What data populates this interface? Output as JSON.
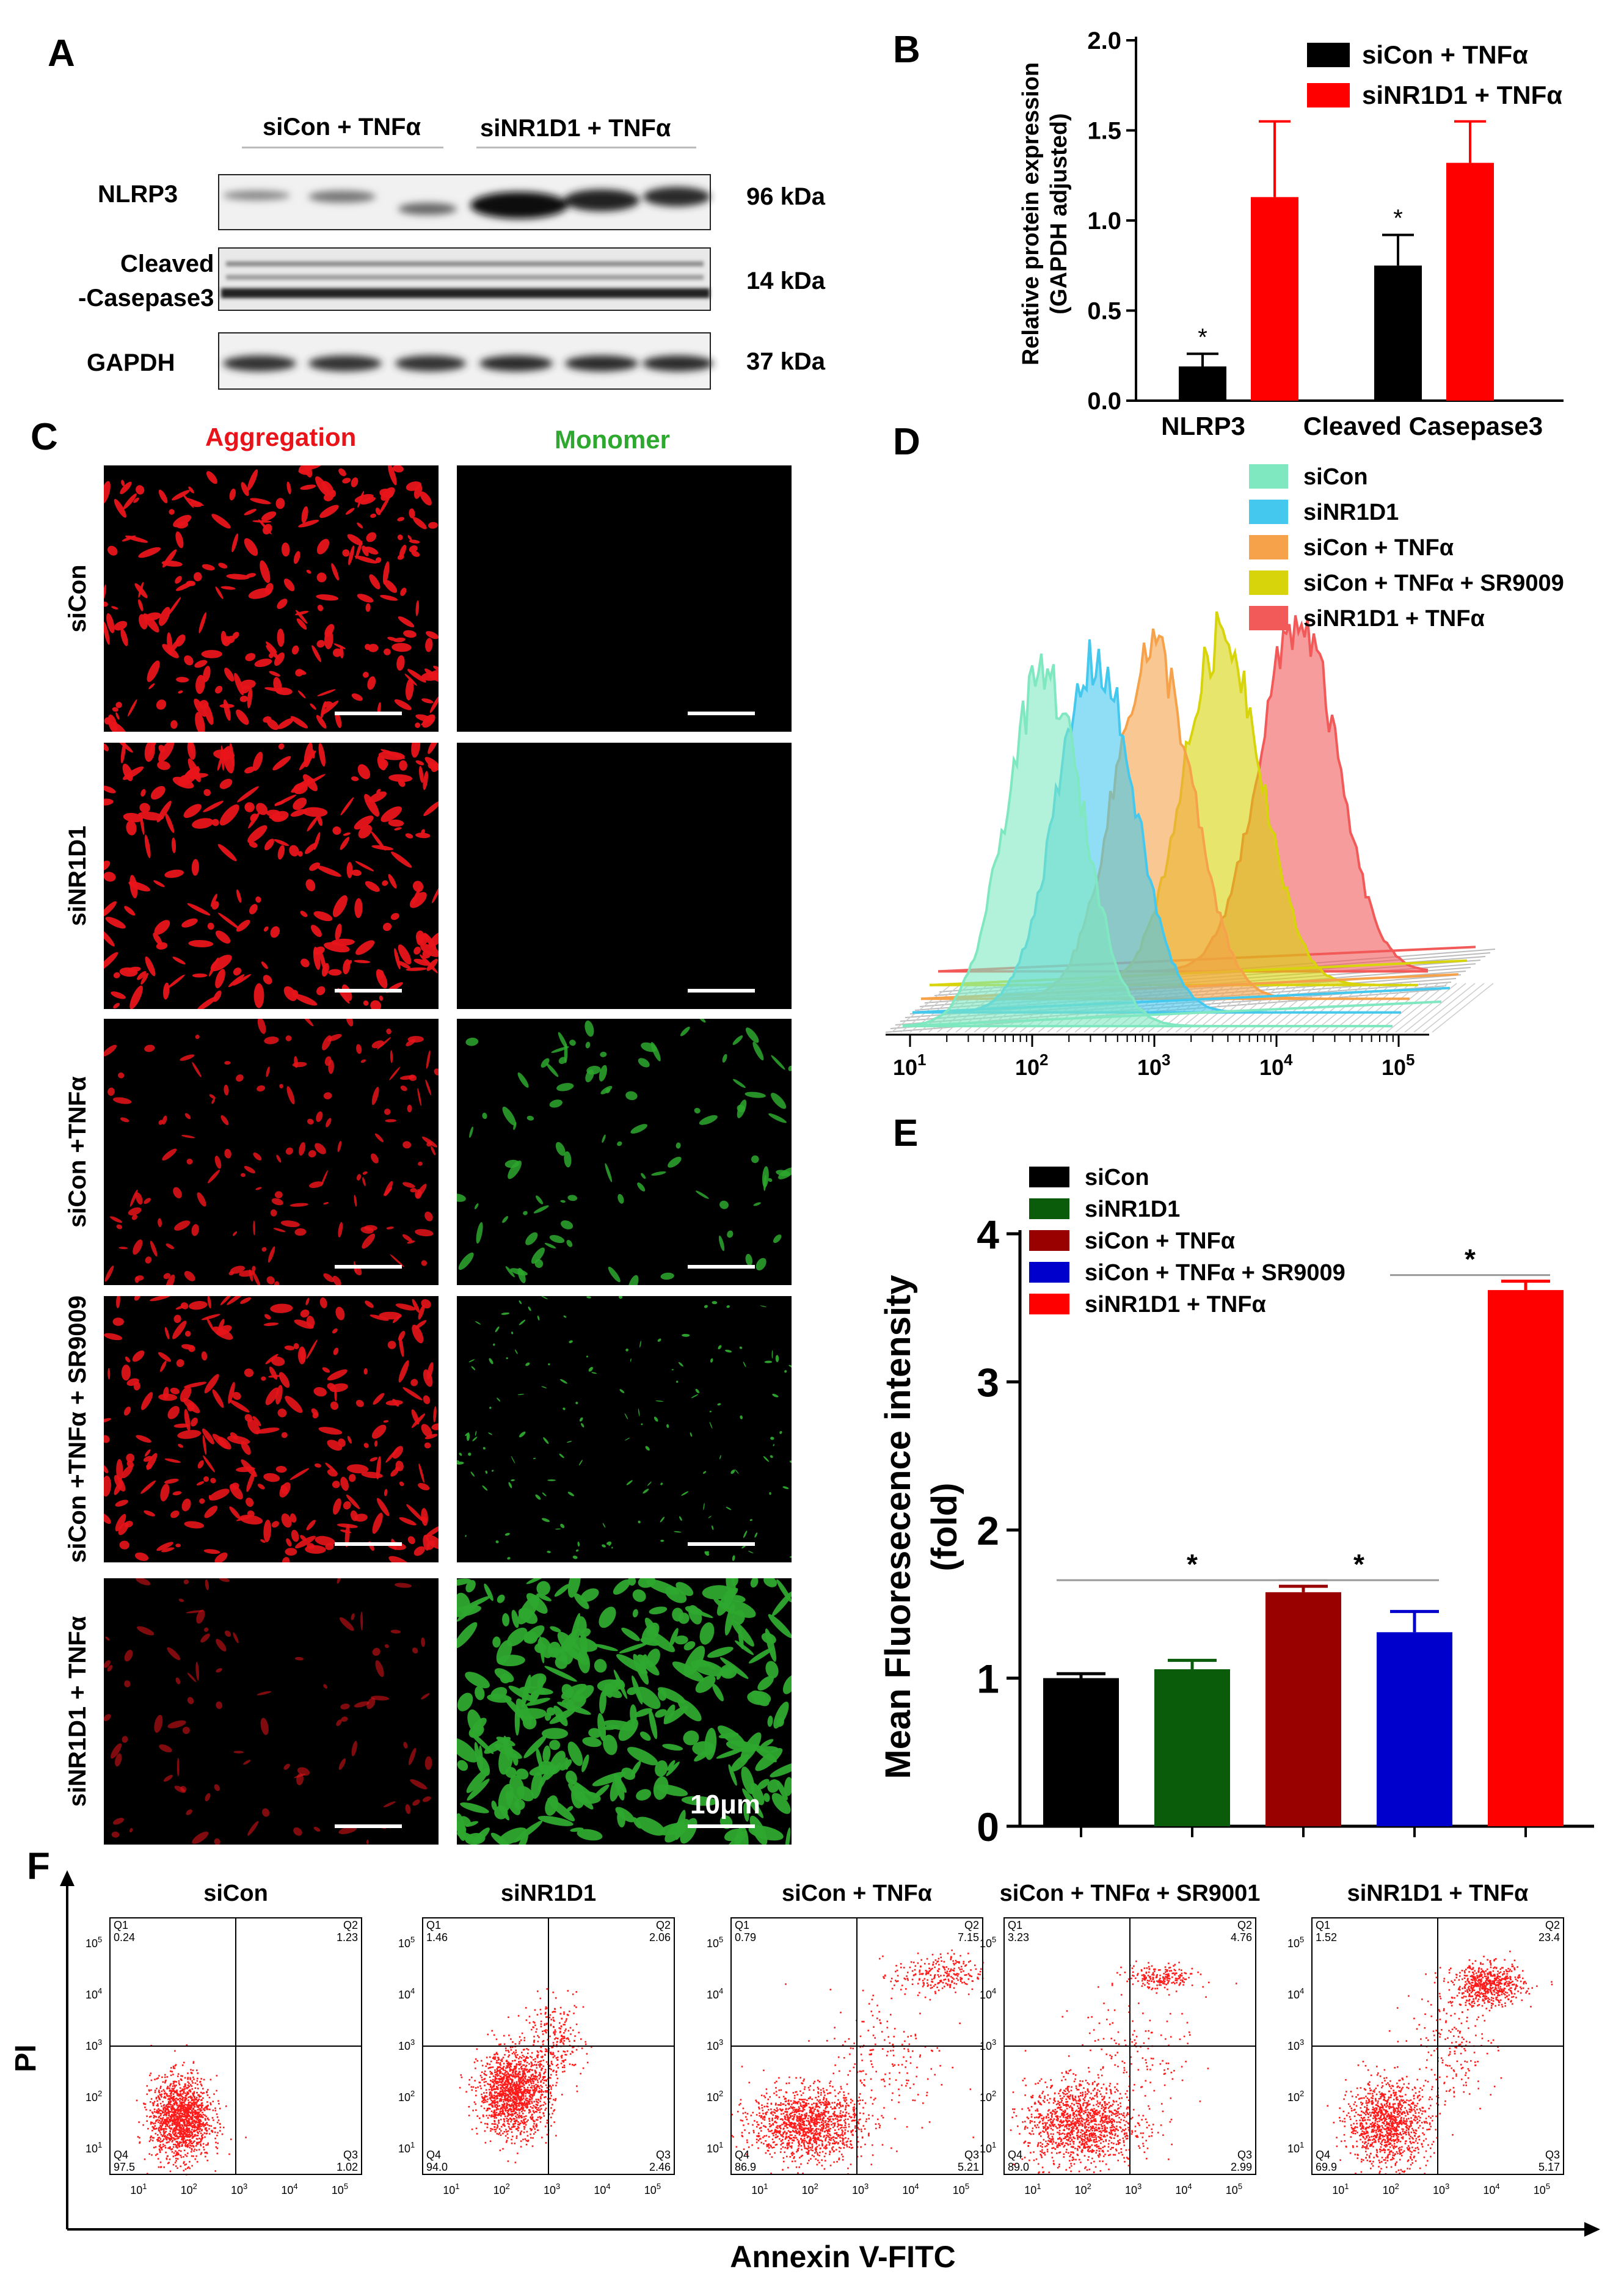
{
  "panels": {
    "a": "A",
    "b": "B",
    "c": "C",
    "d": "D",
    "e": "E",
    "f": "F"
  },
  "panelA": {
    "group_labels": [
      "siCon + TNFα",
      "siNR1D1 + TNFα"
    ],
    "rows": [
      {
        "name": "NLRP3",
        "kda": "96 kDa"
      },
      {
        "name": "Cleaved\n-Casepase3",
        "kda": "14 kDa"
      },
      {
        "name": "GAPDH",
        "kda": "37 kDa"
      }
    ]
  },
  "panelC": {
    "col_titles": [
      "Aggregation",
      "Monomer"
    ],
    "row_labels": [
      "siCon",
      "siNR1D1",
      "siCon +TNFα",
      "siCon +TNFα + SR9009",
      "siNR1D1 + TNFα"
    ],
    "scale_label": "10μm",
    "colors": {
      "aggregation": "#e8141a",
      "monomer": "#2ea82e"
    }
  },
  "panelD": {
    "series": [
      {
        "name": "siCon",
        "color": "#7fe8c1",
        "log_peak": 2.15
      },
      {
        "name": "siNR1D1",
        "color": "#44c8ee",
        "log_peak": 2.5
      },
      {
        "name": "siCon + TNFα",
        "color": "#f5a24a",
        "log_peak": 2.9
      },
      {
        "name": "siCon + TNFα + SR9009",
        "color": "#d8d40c",
        "log_peak": 3.4
      },
      {
        "name": "siNR1D1 + TNFα",
        "color": "#f25a5a",
        "log_peak": 3.95
      }
    ],
    "ticks": [
      {
        "b": "10",
        "e": "1"
      },
      {
        "b": "10",
        "e": "2"
      },
      {
        "b": "10",
        "e": "3"
      },
      {
        "b": "10",
        "e": "4"
      },
      {
        "b": "10",
        "e": "5"
      }
    ]
  },
  "chart_data": [
    {
      "id": "B",
      "type": "bar",
      "categories": [
        "NLRP3",
        "Cleaved Casepase3"
      ],
      "series": [
        {
          "name": "siCon + TNFα",
          "color": "#000000",
          "values": [
            0.19,
            0.75
          ],
          "errors": [
            0.07,
            0.17
          ],
          "sig": [
            "*",
            "*"
          ]
        },
        {
          "name": "siNR1D1 + TNFα",
          "color": "#ff0000",
          "values": [
            1.13,
            1.32
          ],
          "errors": [
            0.42,
            0.23
          ],
          "sig": [
            "",
            ""
          ]
        }
      ],
      "ylabel": "Relative protein expression\n(GAPDH adjusted)",
      "ylim": [
        0,
        2.0
      ],
      "yticks": [
        "0.0",
        "0.5",
        "1.0",
        "1.5",
        "2.0"
      ],
      "legend": "top-right"
    },
    {
      "id": "E",
      "type": "bar",
      "categories": [
        "siCon",
        "siNR1D1",
        "siCon + TNFα",
        "siCon + TNFα + SR9009",
        "siNR1D1 + TNFα"
      ],
      "values": [
        1.0,
        1.06,
        1.58,
        1.31,
        3.62
      ],
      "errors": [
        0.03,
        0.06,
        0.04,
        0.14,
        0.06
      ],
      "colors": [
        "#000000",
        "#0a5c0a",
        "#990000",
        "#0000cc",
        "#ff0000"
      ],
      "ylabel": "Mean Fluoresecence intensity\n(fold)",
      "ylim": [
        0,
        4
      ],
      "yticks": [
        "0",
        "1",
        "2",
        "3",
        "4"
      ],
      "brackets": [
        {
          "from": 0,
          "to": 2,
          "label": "*"
        },
        {
          "from": 2,
          "to": 3,
          "label": "*"
        },
        {
          "from": 3,
          "to": 4,
          "label": "*"
        }
      ],
      "legend": "top-left"
    }
  ],
  "panelF": {
    "plots": [
      {
        "title": "siCon",
        "q1": "0.24",
        "q2": "1.23",
        "q3": "1.02",
        "q4": "97.5"
      },
      {
        "title": "siNR1D1",
        "q1": "1.46",
        "q2": "2.06",
        "q3": "2.46",
        "q4": "94.0"
      },
      {
        "title": "siCon + TNFα",
        "q1": "0.79",
        "q2": "7.15",
        "q3": "5.21",
        "q4": "86.9"
      },
      {
        "title": "siCon + TNFα + SR9001",
        "q1": "3.23",
        "q2": "4.76",
        "q3": "2.99",
        "q4": "89.0"
      },
      {
        "title": "siNR1D1 + TNFα",
        "q1": "1.52",
        "q2": "23.4",
        "q3": "5.17",
        "q4": "69.9"
      }
    ],
    "quadrant_names": [
      "Q1",
      "Q2",
      "Q3",
      "Q4"
    ],
    "ylabel": "PI",
    "xlabel": "Annexin V-FITC",
    "dot_color": "#ff1a1a"
  }
}
